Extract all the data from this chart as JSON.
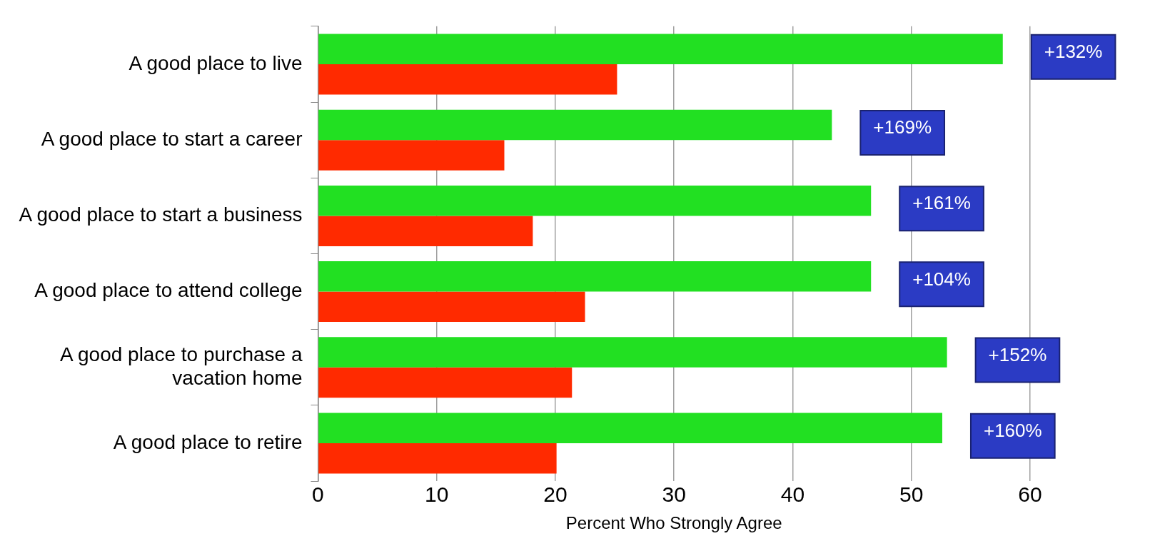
{
  "chart_data": {
    "type": "bar",
    "orientation": "horizontal",
    "xlabel": "Percent Who Strongly Agree",
    "categories": [
      "A good place to live",
      "A good place to start a career",
      "A good place to start a business",
      "A good place to attend college",
      "A good place to purchase a vacation home",
      "A good place to retire"
    ],
    "series": [
      {
        "color": "#22e022",
        "values": [
          57.7,
          43.3,
          46.6,
          46.6,
          53.0,
          52.6
        ]
      },
      {
        "color": "#ff2a00",
        "values": [
          25.2,
          15.7,
          18.1,
          22.5,
          21.4,
          20.1
        ]
      }
    ],
    "xlim": [
      0,
      60
    ],
    "xticks": [
      0,
      10,
      20,
      30,
      40,
      50,
      60
    ],
    "grid": "x",
    "legend": false,
    "annotations": [
      "+132%",
      "+169%",
      "+161%",
      "+104%",
      "+152%",
      "+160%"
    ]
  }
}
